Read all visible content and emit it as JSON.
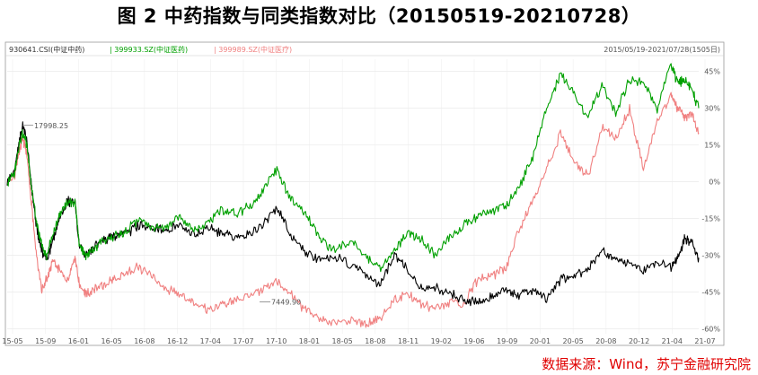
{
  "title": "图 2  中药指数与同类指数对比（20150519-20210728）",
  "source": "数据来源：Wind，苏宁金融研究院",
  "chart_data": {
    "type": "line",
    "date_range_label": "2015/05/19-2021/07/28(1505日)",
    "x_tick_labels": [
      "15-05",
      "15-09",
      "16-01",
      "16-05",
      "16-08",
      "16-12",
      "17-04",
      "17-07",
      "17-10",
      "18-01",
      "18-05",
      "18-08",
      "18-11",
      "19-02",
      "19-06",
      "19-09",
      "20-01",
      "20-05",
      "20-08",
      "20-12",
      "21-04",
      "21-07"
    ],
    "y_tick_labels": [
      "45%",
      "30%",
      "15%",
      "0%",
      "-15%",
      "-30%",
      "-45%",
      "-60%"
    ],
    "y_axis_values": [
      45,
      30,
      15,
      0,
      -15,
      -30,
      -45,
      -60
    ],
    "ylim": [
      -62,
      50
    ],
    "annotations": [
      {
        "text": "17998.25",
        "series": 0,
        "x": 0.022,
        "y": 23
      },
      {
        "text": "7449.90",
        "series": 0,
        "x": 0.365,
        "y": -49
      }
    ],
    "series": [
      {
        "name": "930641.CSI(中证中药)",
        "color": "#000000",
        "x": [
          0,
          0.011,
          0.017,
          0.022,
          0.028,
          0.035,
          0.042,
          0.05,
          0.057,
          0.066,
          0.075,
          0.087,
          0.098,
          0.104,
          0.113,
          0.124,
          0.14,
          0.155,
          0.17,
          0.19,
          0.21,
          0.23,
          0.25,
          0.27,
          0.29,
          0.31,
          0.33,
          0.35,
          0.37,
          0.39,
          0.41,
          0.43,
          0.45,
          0.47,
          0.5,
          0.52,
          0.54,
          0.56,
          0.58,
          0.6,
          0.62,
          0.64,
          0.66,
          0.68,
          0.7,
          0.72,
          0.74,
          0.76,
          0.78,
          0.8,
          0.82,
          0.84,
          0.86,
          0.88,
          0.9,
          0.92,
          0.94,
          0.96,
          0.97,
          0.98,
          0.99,
          1.0
        ],
        "y": [
          0,
          5,
          15,
          23,
          18,
          -2,
          -18,
          -28,
          -32,
          -24,
          -15,
          -8,
          -8,
          -26,
          -30,
          -27,
          -24,
          -22,
          -21,
          -18,
          -19,
          -20,
          -18,
          -22,
          -19,
          -21,
          -23,
          -21,
          -18,
          -10,
          -22,
          -28,
          -32,
          -30,
          -34,
          -38,
          -42,
          -30,
          -36,
          -44,
          -43,
          -46,
          -48,
          -49,
          -47,
          -44,
          -46,
          -44,
          -48,
          -40,
          -38,
          -36,
          -28,
          -32,
          -34,
          -36,
          -33,
          -35,
          -31,
          -23,
          -25,
          -31
        ]
      },
      {
        "name": "399933.SZ(中证医药)",
        "color": "#00a000",
        "x": [
          0,
          0.011,
          0.017,
          0.022,
          0.028,
          0.035,
          0.042,
          0.05,
          0.057,
          0.066,
          0.075,
          0.087,
          0.098,
          0.104,
          0.113,
          0.124,
          0.14,
          0.155,
          0.17,
          0.19,
          0.21,
          0.23,
          0.25,
          0.27,
          0.29,
          0.31,
          0.33,
          0.35,
          0.37,
          0.39,
          0.41,
          0.43,
          0.45,
          0.47,
          0.5,
          0.52,
          0.54,
          0.56,
          0.58,
          0.6,
          0.62,
          0.64,
          0.66,
          0.68,
          0.7,
          0.72,
          0.74,
          0.76,
          0.78,
          0.8,
          0.82,
          0.84,
          0.86,
          0.88,
          0.9,
          0.92,
          0.94,
          0.96,
          0.97,
          0.98,
          0.99,
          1.0
        ],
        "y": [
          0,
          4,
          14,
          20,
          16,
          -2,
          -16,
          -26,
          -30,
          -22,
          -14,
          -8,
          -8,
          -25,
          -30,
          -28,
          -24,
          -22,
          -20,
          -16,
          -18,
          -19,
          -14,
          -20,
          -16,
          -12,
          -13,
          -10,
          -4,
          5,
          -8,
          -12,
          -22,
          -28,
          -24,
          -31,
          -36,
          -28,
          -20,
          -24,
          -30,
          -22,
          -18,
          -14,
          -12,
          -10,
          -2,
          10,
          30,
          44,
          36,
          26,
          40,
          28,
          42,
          40,
          30,
          48,
          40,
          42,
          38,
          30
        ]
      },
      {
        "name": "399989.SZ(中证医疗)",
        "color": "#f08080",
        "x": [
          0,
          0.011,
          0.017,
          0.022,
          0.028,
          0.035,
          0.042,
          0.05,
          0.057,
          0.066,
          0.075,
          0.087,
          0.098,
          0.104,
          0.113,
          0.124,
          0.14,
          0.155,
          0.17,
          0.19,
          0.21,
          0.23,
          0.25,
          0.27,
          0.29,
          0.31,
          0.33,
          0.35,
          0.37,
          0.39,
          0.41,
          0.43,
          0.45,
          0.47,
          0.5,
          0.52,
          0.54,
          0.56,
          0.58,
          0.6,
          0.62,
          0.64,
          0.66,
          0.68,
          0.7,
          0.72,
          0.74,
          0.76,
          0.78,
          0.8,
          0.82,
          0.84,
          0.86,
          0.88,
          0.9,
          0.92,
          0.94,
          0.96,
          0.97,
          0.98,
          0.99,
          1.0
        ],
        "y": [
          0,
          3,
          12,
          18,
          12,
          -8,
          -30,
          -44,
          -40,
          -32,
          -36,
          -40,
          -30,
          -42,
          -46,
          -44,
          -42,
          -40,
          -38,
          -35,
          -38,
          -44,
          -46,
          -50,
          -52,
          -50,
          -48,
          -46,
          -44,
          -40,
          -46,
          -52,
          -55,
          -58,
          -56,
          -58,
          -55,
          -48,
          -46,
          -50,
          -52,
          -49,
          -50,
          -40,
          -38,
          -36,
          -20,
          -8,
          5,
          20,
          8,
          2,
          22,
          18,
          30,
          5,
          25,
          35,
          30,
          26,
          28,
          20
        ]
      }
    ]
  }
}
